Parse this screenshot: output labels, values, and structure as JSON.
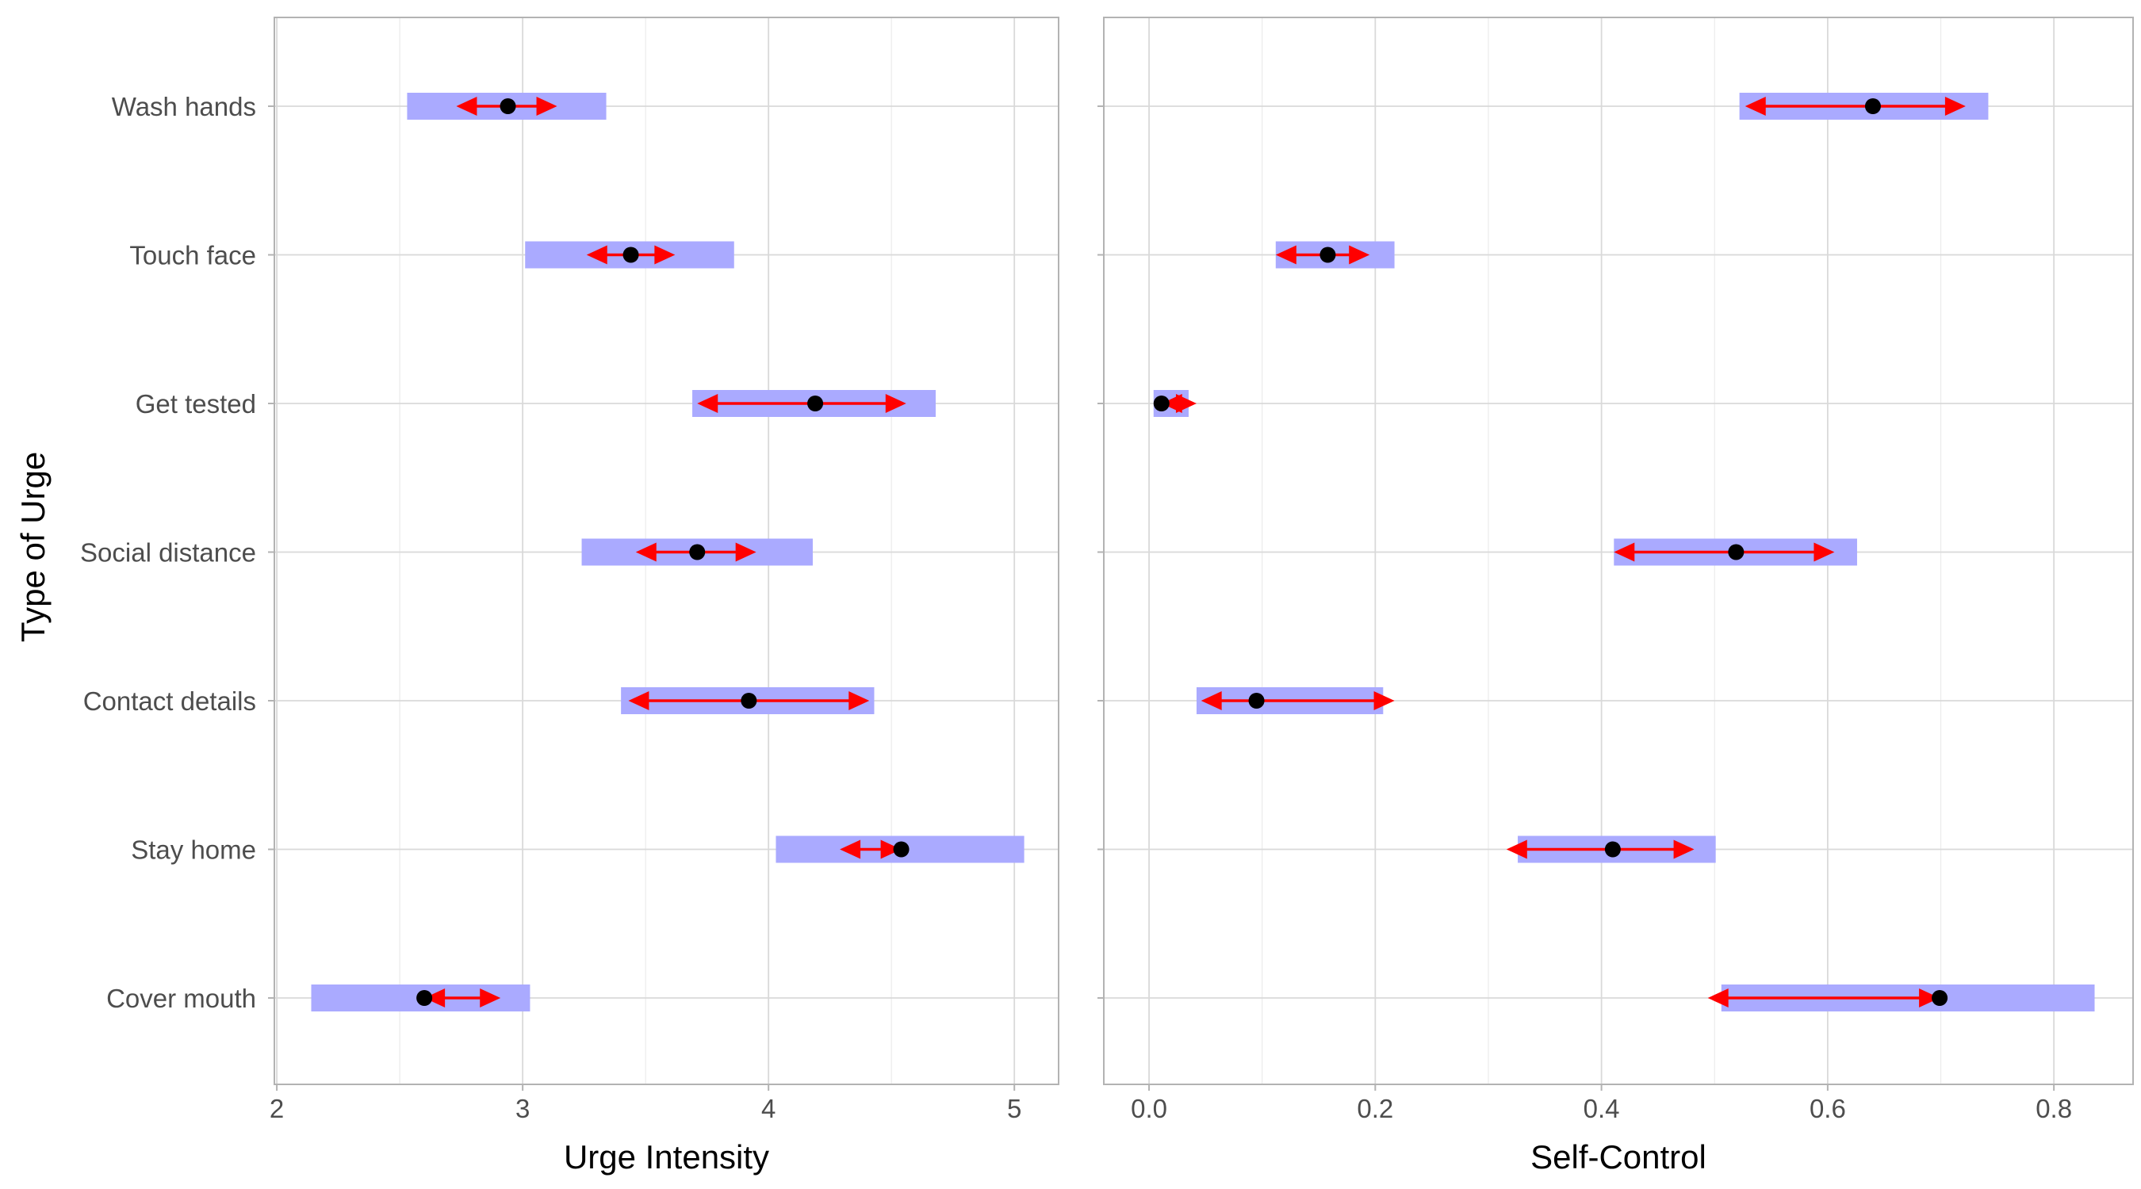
{
  "chart_data": {
    "type": "range-arrow-dot",
    "ylabel": "Type of Urge",
    "categories": [
      "Wash hands",
      "Touch face",
      "Get tested",
      "Social distance",
      "Contact details",
      "Stay home",
      "Cover mouth"
    ],
    "colors": {
      "band": "#aaaaff",
      "arrow": "#ff0000",
      "point": "#000000",
      "grid_major": "#d9d9d9",
      "grid_minor": "#ebebeb",
      "frame": "#b3b3b3"
    },
    "panels": [
      {
        "xlabel": "Urge Intensity",
        "xlim": [
          1.99,
          5.18
        ],
        "xticks": [
          2,
          3,
          4,
          5
        ],
        "xtick_labels": [
          "2",
          "3",
          "4",
          "5"
        ],
        "rows": [
          {
            "category": "Wash hands",
            "band": [
              2.53,
              3.34
            ],
            "arrow": [
              2.73,
              3.14
            ],
            "point": 2.94
          },
          {
            "category": "Touch face",
            "band": [
              3.01,
              3.86
            ],
            "arrow": [
              3.26,
              3.62
            ],
            "point": 3.44
          },
          {
            "category": "Get tested",
            "band": [
              3.69,
              4.68
            ],
            "arrow": [
              3.71,
              4.56
            ],
            "point": 4.19
          },
          {
            "category": "Social distance",
            "band": [
              3.24,
              4.18
            ],
            "arrow": [
              3.46,
              3.95
            ],
            "point": 3.71
          },
          {
            "category": "Contact details",
            "band": [
              3.4,
              4.43
            ],
            "arrow": [
              3.43,
              4.41
            ],
            "point": 3.92
          },
          {
            "category": "Stay home",
            "band": [
              4.03,
              5.04
            ],
            "arrow": [
              4.29,
              4.54
            ],
            "point": 4.54
          },
          {
            "category": "Cover mouth",
            "band": [
              2.14,
              3.03
            ],
            "arrow": [
              2.6,
              2.91
            ],
            "point": 2.6
          }
        ]
      },
      {
        "xlabel": "Self-Control",
        "xlim": [
          -0.04,
          0.87
        ],
        "xticks": [
          0.0,
          0.2,
          0.4,
          0.6,
          0.8
        ],
        "xtick_labels": [
          "0.0",
          "0.2",
          "0.4",
          "0.6",
          "0.8"
        ],
        "rows": [
          {
            "category": "Wash hands",
            "band": [
              0.522,
              0.742
            ],
            "arrow": [
              0.527,
              0.722
            ],
            "point": 0.64
          },
          {
            "category": "Touch face",
            "band": [
              0.112,
              0.217
            ],
            "arrow": [
              0.112,
              0.195
            ],
            "point": 0.158
          },
          {
            "category": "Get tested",
            "band": [
              0.004,
              0.035
            ],
            "arrow": [
              0.011,
              0.042
            ],
            "point": 0.011
          },
          {
            "category": "Social distance",
            "band": [
              0.411,
              0.626
            ],
            "arrow": [
              0.411,
              0.606
            ],
            "point": 0.519
          },
          {
            "category": "Contact details",
            "band": [
              0.042,
              0.207
            ],
            "arrow": [
              0.046,
              0.217
            ],
            "point": 0.095
          },
          {
            "category": "Stay home",
            "band": [
              0.326,
              0.501
            ],
            "arrow": [
              0.316,
              0.482
            ],
            "point": 0.41
          },
          {
            "category": "Cover mouth",
            "band": [
              0.506,
              0.836
            ],
            "arrow": [
              0.494,
              0.699
            ],
            "point": 0.699
          }
        ]
      }
    ]
  }
}
